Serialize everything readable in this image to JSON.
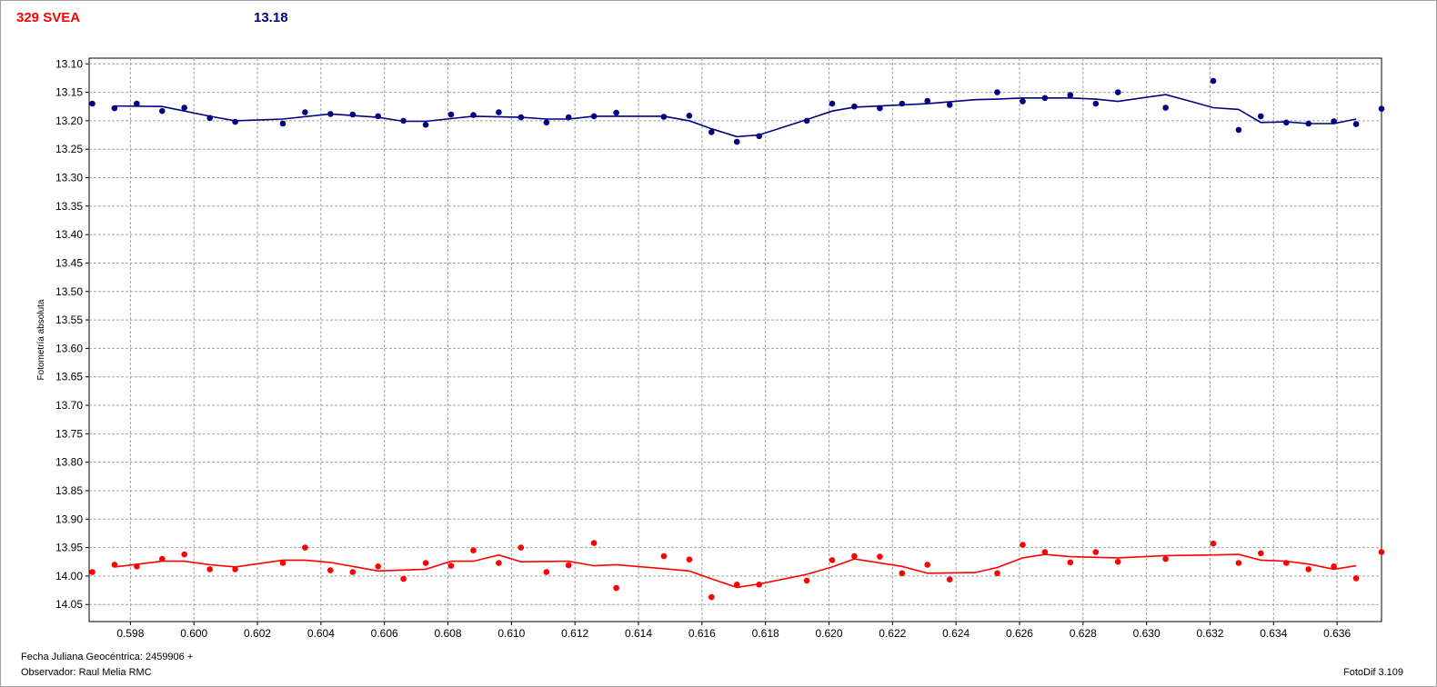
{
  "header": {
    "object_name": "329 SVEA",
    "mean_mag": "13.18"
  },
  "footer": {
    "jd_label": "Fecha Juliana Geocéntrica: 2459906 +",
    "observer": "Observador: Raul Melia RMC",
    "software": "FotoDif 3.109"
  },
  "colors": {
    "target": "#ff0000",
    "comparison": "#000080",
    "grid": "#a0a0a0"
  },
  "chart_data": {
    "type": "scatter",
    "xlabel": "",
    "ylabel": "Fotometría absoluta",
    "xlim": [
      0.5967,
      0.6374
    ],
    "ylim": [
      13.09,
      14.08
    ],
    "y_inverted": true,
    "grid": true,
    "x_ticks": [
      "0.598",
      "0.600",
      "0.602",
      "0.604",
      "0.606",
      "0.608",
      "0.610",
      "0.612",
      "0.614",
      "0.616",
      "0.618",
      "0.620",
      "0.622",
      "0.624",
      "0.626",
      "0.628",
      "0.630",
      "0.632",
      "0.634",
      "0.636"
    ],
    "y_ticks": [
      "13.10",
      "13.15",
      "13.20",
      "13.25",
      "13.30",
      "13.35",
      "13.40",
      "13.45",
      "13.50",
      "13.55",
      "13.60",
      "13.65",
      "13.70",
      "13.75",
      "13.80",
      "13.85",
      "13.90",
      "13.95",
      "14.00",
      "14.05"
    ],
    "series": [
      {
        "color": "#000080",
        "points": [
          [
            0.5968,
            13.17
          ],
          [
            0.5975,
            13.178
          ],
          [
            0.5982,
            13.17
          ],
          [
            0.599,
            13.183
          ],
          [
            0.5997,
            13.177
          ],
          [
            0.6005,
            13.195
          ],
          [
            0.6013,
            13.202
          ],
          [
            0.6028,
            13.205
          ],
          [
            0.6035,
            13.185
          ],
          [
            0.6043,
            13.188
          ],
          [
            0.605,
            13.189
          ],
          [
            0.6058,
            13.192
          ],
          [
            0.6066,
            13.2
          ],
          [
            0.6073,
            13.207
          ],
          [
            0.6081,
            13.189
          ],
          [
            0.6088,
            13.19
          ],
          [
            0.6096,
            13.185
          ],
          [
            0.6103,
            13.194
          ],
          [
            0.6111,
            13.203
          ],
          [
            0.6118,
            13.194
          ],
          [
            0.6126,
            13.192
          ],
          [
            0.6133,
            13.186
          ],
          [
            0.6148,
            13.193
          ],
          [
            0.6156,
            13.191
          ],
          [
            0.6163,
            13.22
          ],
          [
            0.6171,
            13.237
          ],
          [
            0.6178,
            13.227
          ],
          [
            0.6193,
            13.2
          ],
          [
            0.6201,
            13.17
          ],
          [
            0.6208,
            13.175
          ],
          [
            0.6216,
            13.178
          ],
          [
            0.6223,
            13.17
          ],
          [
            0.6231,
            13.165
          ],
          [
            0.6238,
            13.172
          ],
          [
            0.6253,
            13.15
          ],
          [
            0.6261,
            13.166
          ],
          [
            0.6268,
            13.16
          ],
          [
            0.6276,
            13.155
          ],
          [
            0.6284,
            13.17
          ],
          [
            0.6291,
            13.15
          ],
          [
            0.6306,
            13.177
          ],
          [
            0.6321,
            13.13
          ],
          [
            0.6329,
            13.216
          ],
          [
            0.6336,
            13.192
          ],
          [
            0.6344,
            13.203
          ],
          [
            0.6351,
            13.205
          ],
          [
            0.6359,
            13.201
          ],
          [
            0.6366,
            13.206
          ],
          [
            0.6374,
            13.179
          ]
        ],
        "trend": [
          [
            0.5975,
            13.174
          ],
          [
            0.599,
            13.175
          ],
          [
            0.6005,
            13.192
          ],
          [
            0.6013,
            13.2
          ],
          [
            0.6028,
            13.197
          ],
          [
            0.6043,
            13.188
          ],
          [
            0.6058,
            13.194
          ],
          [
            0.6066,
            13.201
          ],
          [
            0.6073,
            13.201
          ],
          [
            0.6088,
            13.192
          ],
          [
            0.6103,
            13.194
          ],
          [
            0.6111,
            13.197
          ],
          [
            0.6118,
            13.197
          ],
          [
            0.6126,
            13.192
          ],
          [
            0.6148,
            13.192
          ],
          [
            0.6156,
            13.2
          ],
          [
            0.6163,
            13.214
          ],
          [
            0.6171,
            13.228
          ],
          [
            0.6178,
            13.225
          ],
          [
            0.6193,
            13.198
          ],
          [
            0.6201,
            13.183
          ],
          [
            0.6208,
            13.176
          ],
          [
            0.6223,
            13.172
          ],
          [
            0.6231,
            13.17
          ],
          [
            0.6246,
            13.163
          ],
          [
            0.6253,
            13.162
          ],
          [
            0.6261,
            13.16
          ],
          [
            0.6276,
            13.16
          ],
          [
            0.6284,
            13.162
          ],
          [
            0.6291,
            13.166
          ],
          [
            0.6306,
            13.154
          ],
          [
            0.6314,
            13.166
          ],
          [
            0.6321,
            13.177
          ],
          [
            0.6329,
            13.18
          ],
          [
            0.6336,
            13.203
          ],
          [
            0.6344,
            13.202
          ],
          [
            0.6351,
            13.205
          ],
          [
            0.6359,
            13.205
          ],
          [
            0.6366,
            13.197
          ]
        ]
      },
      {
        "color": "#ff0000",
        "points": [
          [
            0.5968,
            13.993
          ],
          [
            0.5975,
            13.98
          ],
          [
            0.5982,
            13.983
          ],
          [
            0.599,
            13.97
          ],
          [
            0.5997,
            13.962
          ],
          [
            0.6005,
            13.988
          ],
          [
            0.6013,
            13.988
          ],
          [
            0.6028,
            13.977
          ],
          [
            0.6035,
            13.95
          ],
          [
            0.6043,
            13.99
          ],
          [
            0.605,
            13.993
          ],
          [
            0.6058,
            13.983
          ],
          [
            0.6066,
            14.005
          ],
          [
            0.6073,
            13.977
          ],
          [
            0.6081,
            13.982
          ],
          [
            0.6088,
            13.955
          ],
          [
            0.6096,
            13.977
          ],
          [
            0.6103,
            13.95
          ],
          [
            0.6111,
            13.993
          ],
          [
            0.6118,
            13.981
          ],
          [
            0.6126,
            13.942
          ],
          [
            0.6133,
            14.021
          ],
          [
            0.6148,
            13.965
          ],
          [
            0.6156,
            13.971
          ],
          [
            0.6163,
            14.037
          ],
          [
            0.6171,
            14.015
          ],
          [
            0.6178,
            14.015
          ],
          [
            0.6193,
            14.008
          ],
          [
            0.6201,
            13.972
          ],
          [
            0.6208,
            13.965
          ],
          [
            0.6216,
            13.966
          ],
          [
            0.6223,
            13.995
          ],
          [
            0.6231,
            13.98
          ],
          [
            0.6238,
            14.006
          ],
          [
            0.6253,
            13.995
          ],
          [
            0.6261,
            13.945
          ],
          [
            0.6268,
            13.958
          ],
          [
            0.6276,
            13.976
          ],
          [
            0.6284,
            13.958
          ],
          [
            0.6291,
            13.975
          ],
          [
            0.6306,
            13.97
          ],
          [
            0.6321,
            13.943
          ],
          [
            0.6329,
            13.977
          ],
          [
            0.6336,
            13.96
          ],
          [
            0.6344,
            13.977
          ],
          [
            0.6351,
            13.988
          ],
          [
            0.6359,
            13.983
          ],
          [
            0.6366,
            14.004
          ],
          [
            0.6374,
            13.958
          ]
        ],
        "trend": [
          [
            0.5975,
            13.984
          ],
          [
            0.599,
            13.974
          ],
          [
            0.5997,
            13.974
          ],
          [
            0.6005,
            13.98
          ],
          [
            0.6013,
            13.984
          ],
          [
            0.6028,
            13.972
          ],
          [
            0.6035,
            13.972
          ],
          [
            0.6043,
            13.976
          ],
          [
            0.6058,
            13.991
          ],
          [
            0.6073,
            13.988
          ],
          [
            0.6081,
            13.974
          ],
          [
            0.6088,
            13.974
          ],
          [
            0.6096,
            13.963
          ],
          [
            0.6103,
            13.975
          ],
          [
            0.6118,
            13.974
          ],
          [
            0.6126,
            13.982
          ],
          [
            0.6133,
            13.98
          ],
          [
            0.6148,
            13.987
          ],
          [
            0.6156,
            13.991
          ],
          [
            0.6163,
            14.005
          ],
          [
            0.6171,
            14.02
          ],
          [
            0.6178,
            14.014
          ],
          [
            0.6193,
            13.997
          ],
          [
            0.6201,
            13.984
          ],
          [
            0.6208,
            13.97
          ],
          [
            0.6223,
            13.983
          ],
          [
            0.6231,
            13.995
          ],
          [
            0.6246,
            13.994
          ],
          [
            0.6253,
            13.985
          ],
          [
            0.6261,
            13.968
          ],
          [
            0.6268,
            13.962
          ],
          [
            0.6276,
            13.966
          ],
          [
            0.6291,
            13.968
          ],
          [
            0.6306,
            13.964
          ],
          [
            0.6321,
            13.963
          ],
          [
            0.6329,
            13.962
          ],
          [
            0.6336,
            13.972
          ],
          [
            0.6344,
            13.974
          ],
          [
            0.6351,
            13.979
          ],
          [
            0.6359,
            13.988
          ],
          [
            0.6366,
            13.982
          ]
        ]
      }
    ]
  }
}
